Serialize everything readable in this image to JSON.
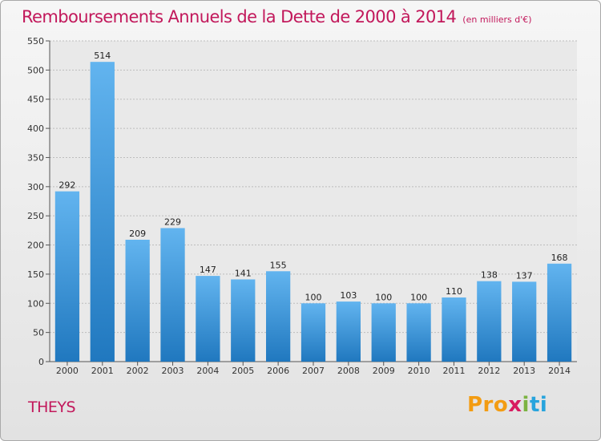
{
  "header": {
    "title": "Remboursements Annuels de la Dette de 2000 à 2014",
    "unit": "(en milliers d'€)"
  },
  "footer": {
    "place": "THEYS",
    "logo": [
      "Pro",
      "x",
      "i",
      "t",
      "i"
    ]
  },
  "colors": {
    "title": "#c2185b",
    "bar_top": "#62b4ef",
    "bar_bottom": "#2078bf"
  },
  "chart_data": {
    "type": "bar",
    "title": "Remboursements Annuels de la Dette de 2000 à 2014",
    "subtitle": "(en milliers d'€)",
    "categories": [
      "2000",
      "2001",
      "2002",
      "2003",
      "2004",
      "2005",
      "2006",
      "2007",
      "2008",
      "2009",
      "2010",
      "2011",
      "2012",
      "2013",
      "2014"
    ],
    "values": [
      292,
      514,
      209,
      229,
      147,
      141,
      155,
      100,
      103,
      100,
      100,
      110,
      138,
      137,
      168
    ],
    "ylim": [
      0,
      550
    ],
    "yticks": [
      0,
      50,
      100,
      150,
      200,
      250,
      300,
      350,
      400,
      450,
      500,
      550
    ],
    "grid": true,
    "legend": "none"
  }
}
